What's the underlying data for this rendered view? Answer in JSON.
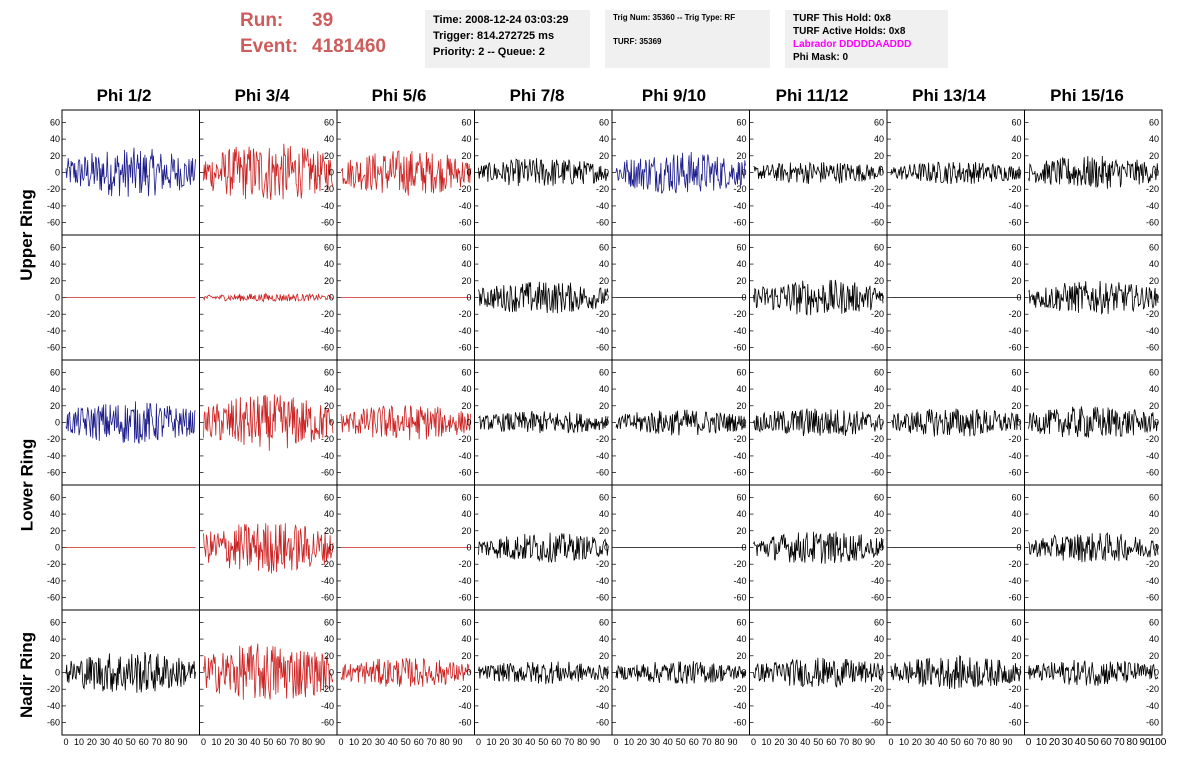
{
  "header": {
    "run_label": "Run:",
    "run_value": "39",
    "event_label": "Event:",
    "event_value": "4181460",
    "time": "Time: 2008-12-24 03:03:29",
    "trigger": "Trigger: 814.272725 ms",
    "priority": "Priority: 2 -- Queue: 2",
    "trig_num": "Trig Num: 35360 -- Trig Type: RF",
    "turf": "TURF: 35369",
    "turf_this_hold": "TURF This Hold: 0x8",
    "turf_active_holds": "TURF Active Holds: 0x8",
    "labrador": "Labrador DDDDDAADDD",
    "phi_mask": "Phi Mask: 0"
  },
  "colors": {
    "run_text": "#cd5c5c",
    "labrador_text": "#ff00ff",
    "blue": "#1c1c8c",
    "red": "#cc2222",
    "black": "#000000",
    "info_bg": "#f0f0f0"
  },
  "chart_data": {
    "type": "line",
    "columns": [
      "Phi 1/2",
      "Phi 3/4",
      "Phi 5/6",
      "Phi 7/8",
      "Phi 9/10",
      "Phi 11/12",
      "Phi 13/14",
      "Phi 15/16"
    ],
    "rows": [
      "Upper Ring",
      "Lower Ring",
      "Nadir Ring"
    ],
    "ylim": [
      -70,
      70
    ],
    "xlim": [
      0,
      100
    ],
    "y_ticks": [
      "60",
      "40",
      "20",
      "0",
      "-20",
      "-40",
      "-60"
    ],
    "x_tick_labels": [
      "0",
      "10",
      "20",
      "30",
      "40",
      "50",
      "60",
      "70",
      "80",
      "90",
      "100"
    ],
    "panels": [
      {
        "color": "blue",
        "amp": 30,
        "flat": false
      },
      {
        "color": "red",
        "amp": 36,
        "flat": false
      },
      {
        "color": "red",
        "amp": 28,
        "flat": false
      },
      {
        "color": "black",
        "amp": 18,
        "flat": false
      },
      {
        "color": "blue",
        "amp": 26,
        "flat": false
      },
      {
        "color": "black",
        "amp": 14,
        "flat": false
      },
      {
        "color": "black",
        "amp": 14,
        "flat": false
      },
      {
        "color": "black",
        "amp": 20,
        "flat": false
      },
      {
        "color": "red",
        "amp": 0,
        "flat": true
      },
      {
        "color": "red",
        "amp": 5,
        "flat": false
      },
      {
        "color": "red",
        "amp": 0,
        "flat": true
      },
      {
        "color": "black",
        "amp": 20,
        "flat": false
      },
      {
        "color": "black",
        "amp": 0,
        "flat": true
      },
      {
        "color": "black",
        "amp": 22,
        "flat": false
      },
      {
        "color": "black",
        "amp": 0,
        "flat": true
      },
      {
        "color": "black",
        "amp": 20,
        "flat": false
      },
      {
        "color": "blue",
        "amp": 26,
        "flat": false
      },
      {
        "color": "red",
        "amp": 34,
        "flat": false
      },
      {
        "color": "red",
        "amp": 22,
        "flat": false
      },
      {
        "color": "black",
        "amp": 14,
        "flat": false
      },
      {
        "color": "black",
        "amp": 16,
        "flat": false
      },
      {
        "color": "black",
        "amp": 18,
        "flat": false
      },
      {
        "color": "black",
        "amp": 18,
        "flat": false
      },
      {
        "color": "black",
        "amp": 20,
        "flat": false
      },
      {
        "color": "red",
        "amp": 0,
        "flat": true
      },
      {
        "color": "red",
        "amp": 32,
        "flat": false
      },
      {
        "color": "red",
        "amp": 0,
        "flat": true
      },
      {
        "color": "black",
        "amp": 18,
        "flat": false
      },
      {
        "color": "black",
        "amp": 0,
        "flat": true
      },
      {
        "color": "black",
        "amp": 20,
        "flat": false
      },
      {
        "color": "black",
        "amp": 0,
        "flat": true
      },
      {
        "color": "black",
        "amp": 18,
        "flat": false
      },
      {
        "color": "black",
        "amp": 26,
        "flat": false
      },
      {
        "color": "red",
        "amp": 36,
        "flat": false
      },
      {
        "color": "red",
        "amp": 18,
        "flat": false
      },
      {
        "color": "black",
        "amp": 14,
        "flat": false
      },
      {
        "color": "black",
        "amp": 14,
        "flat": false
      },
      {
        "color": "black",
        "amp": 18,
        "flat": false
      },
      {
        "color": "black",
        "amp": 20,
        "flat": false
      },
      {
        "color": "black",
        "amp": 16,
        "flat": false
      }
    ]
  }
}
